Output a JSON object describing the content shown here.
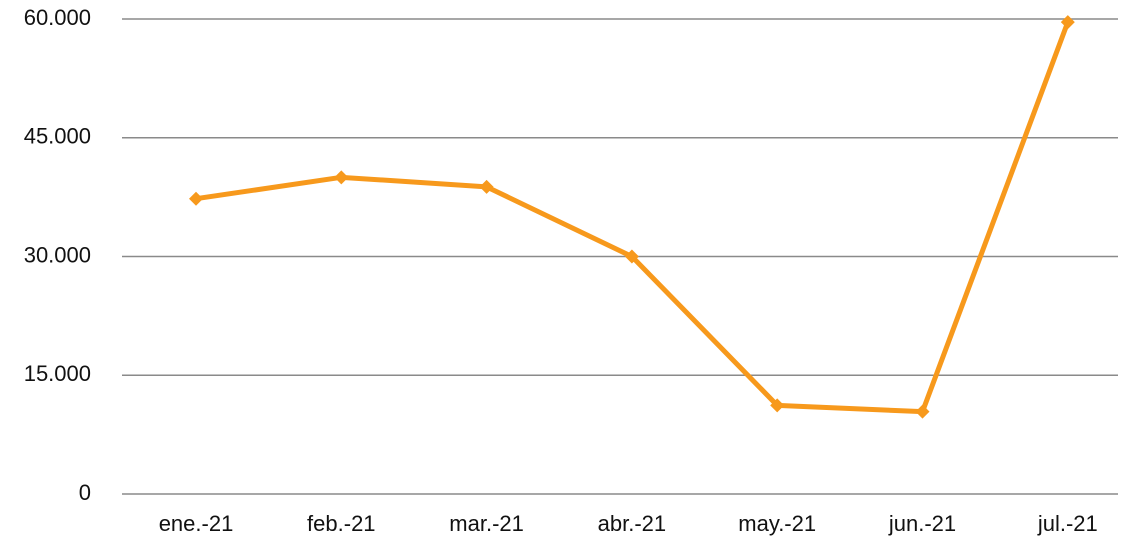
{
  "chart_data": {
    "type": "line",
    "categories": [
      "ene.-21",
      "feb.-21",
      "mar.-21",
      "abr.-21",
      "may.-21",
      "jun.-21",
      "jul.-21"
    ],
    "series": [
      {
        "color": "#f7991c",
        "values": [
          37300,
          40000,
          38800,
          30000,
          11200,
          10400,
          59600
        ]
      }
    ],
    "ylim": [
      0,
      60000
    ],
    "yticks": [
      0,
      {
        "value": 15000,
        "label": "15.000"
      },
      {
        "value": 30000,
        "label": "30.000"
      },
      {
        "value": 45000,
        "label": "45.000"
      },
      {
        "value": 60000,
        "label": "60.000"
      }
    ],
    "grid": true
  }
}
